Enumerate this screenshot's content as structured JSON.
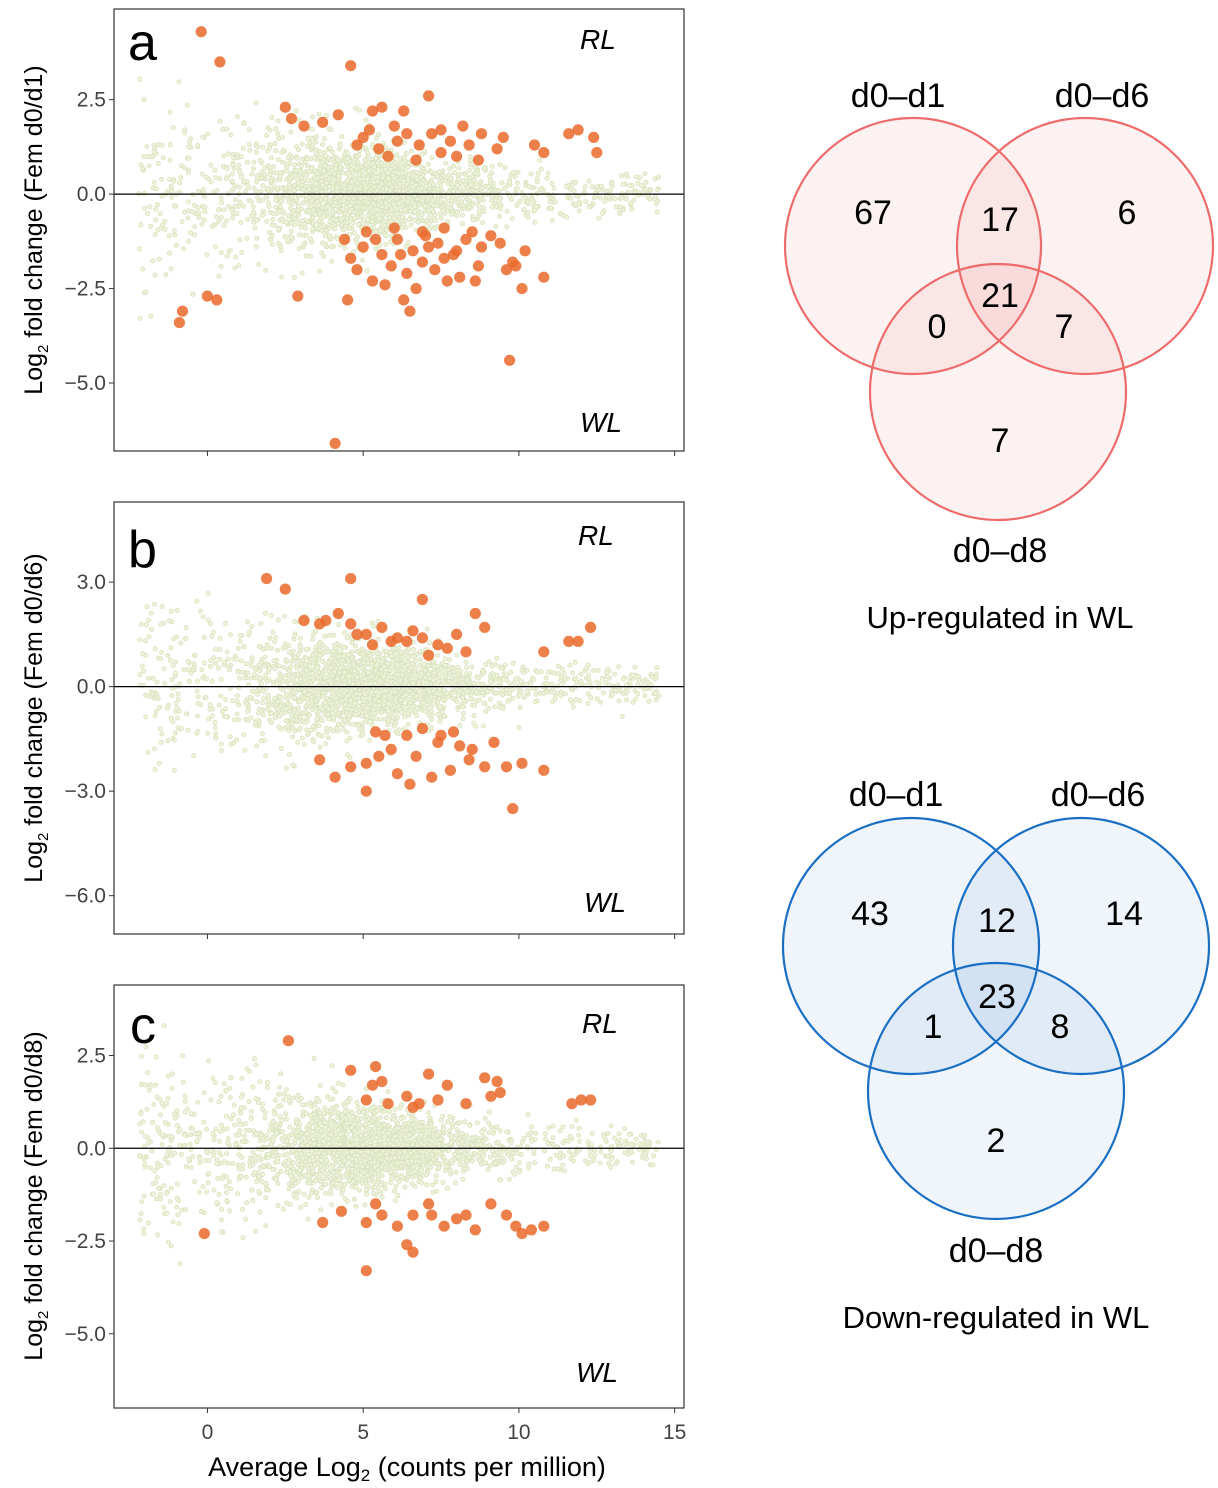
{
  "colors": {
    "background_points": "#d9e3bd",
    "highlight_points": "#ea6a2a",
    "up_venn": "#ee6b6b",
    "down_venn": "#1a6fc4",
    "zero_line": "#000000"
  },
  "x_axis": {
    "label_pre": "Average Log",
    "label_sub": "2",
    "label_post": " (counts per million)",
    "ticks": [
      0,
      5,
      10,
      15
    ],
    "range": [
      -3,
      15.3
    ]
  },
  "corner_labels": {
    "top": "RL",
    "bottom": "WL"
  },
  "chart_data": [
    {
      "type": "scatter",
      "panel": "a",
      "ylabel_pre": "Log",
      "ylabel_sub": "2",
      "ylabel_post": " fold change (Fem d0/d1)",
      "ylim": [
        -6.8,
        4.9
      ],
      "y_ticks": [
        2.5,
        0.0,
        -2.5,
        -5.0
      ],
      "y_tick_labels": [
        "2.5",
        "0.0",
        "−2.5",
        "−5.0"
      ],
      "reference_line": 0,
      "highlighted": [
        [
          -0.2,
          4.3
        ],
        [
          0.4,
          3.5
        ],
        [
          4.6,
          3.4
        ],
        [
          -0.8,
          -3.1
        ],
        [
          -0.9,
          -3.4
        ],
        [
          0,
          -2.7
        ],
        [
          0.3,
          -2.8
        ],
        [
          2.9,
          -2.7
        ],
        [
          4.5,
          -2.8
        ],
        [
          2.5,
          2.3
        ],
        [
          2.7,
          2.0
        ],
        [
          3.7,
          1.9
        ],
        [
          4.2,
          2.1
        ],
        [
          5.3,
          2.2
        ],
        [
          5.6,
          2.3
        ],
        [
          6.3,
          2.2
        ],
        [
          7.1,
          2.6
        ],
        [
          7.5,
          1.7
        ],
        [
          8.2,
          1.8
        ],
        [
          8.8,
          1.6
        ],
        [
          9.5,
          1.5
        ],
        [
          10.5,
          1.3
        ],
        [
          10.8,
          1.1
        ],
        [
          11.6,
          1.6
        ],
        [
          11.9,
          1.7
        ],
        [
          12.4,
          1.5
        ],
        [
          12.5,
          1.1
        ],
        [
          5.0,
          1.5
        ],
        [
          5.5,
          1.2
        ],
        [
          6.1,
          1.4
        ],
        [
          6.8,
          1.3
        ],
        [
          7.5,
          1.1
        ],
        [
          8.0,
          1.0
        ],
        [
          8.7,
          0.9
        ],
        [
          5.8,
          1.0
        ],
        [
          6.7,
          0.9
        ],
        [
          4.8,
          1.3
        ],
        [
          7.2,
          1.6
        ],
        [
          3.1,
          1.8
        ],
        [
          5.2,
          1.7
        ],
        [
          6.0,
          1.8
        ],
        [
          6.4,
          1.6
        ],
        [
          7.8,
          1.4
        ],
        [
          8.4,
          1.3
        ],
        [
          9.3,
          1.2
        ],
        [
          4.4,
          -1.2
        ],
        [
          5.0,
          -1.4
        ],
        [
          5.6,
          -1.6
        ],
        [
          6.1,
          -1.2
        ],
        [
          6.6,
          -1.5
        ],
        [
          7.0,
          -1.1
        ],
        [
          7.4,
          -1.3
        ],
        [
          7.9,
          -1.6
        ],
        [
          8.3,
          -1.2
        ],
        [
          8.8,
          -1.4
        ],
        [
          9.4,
          -1.3
        ],
        [
          9.8,
          -1.8
        ],
        [
          10.2,
          -1.5
        ],
        [
          4.8,
          -2.0
        ],
        [
          5.3,
          -2.3
        ],
        [
          5.9,
          -1.9
        ],
        [
          6.4,
          -2.1
        ],
        [
          6.9,
          -1.8
        ],
        [
          7.3,
          -2.0
        ],
        [
          8.1,
          -2.2
        ],
        [
          8.7,
          -1.9
        ],
        [
          9.6,
          -2.0
        ],
        [
          9.9,
          -1.9
        ],
        [
          4.6,
          -1.7
        ],
        [
          5.7,
          -2.4
        ],
        [
          6.3,
          -2.8
        ],
        [
          6.7,
          -2.5
        ],
        [
          7.7,
          -2.3
        ],
        [
          8.6,
          -2.3
        ],
        [
          10.1,
          -2.5
        ],
        [
          10.8,
          -2.2
        ],
        [
          5.1,
          -1.0
        ],
        [
          6.0,
          -0.9
        ],
        [
          6.9,
          -1.0
        ],
        [
          7.6,
          -0.9
        ],
        [
          8.5,
          -1.0
        ],
        [
          9.1,
          -1.1
        ],
        [
          6.5,
          -3.1
        ],
        [
          4.1,
          -6.6
        ],
        [
          9.7,
          -4.4
        ],
        [
          5.4,
          -1.2
        ],
        [
          6.2,
          -1.6
        ],
        [
          7.1,
          -1.4
        ],
        [
          7.6,
          -1.7
        ],
        [
          8.0,
          -1.5
        ]
      ]
    },
    {
      "type": "scatter",
      "panel": "b",
      "ylabel_pre": "Log",
      "ylabel_sub": "2",
      "ylabel_post": " fold change (Fem d0/d6)",
      "ylim": [
        -7.1,
        5.3
      ],
      "y_ticks": [
        3.0,
        0.0,
        -3.0,
        -6.0
      ],
      "y_tick_labels": [
        "3.0",
        "0.0",
        "−3.0",
        "−6.0"
      ],
      "reference_line": 0,
      "highlighted": [
        [
          1.9,
          3.1
        ],
        [
          2.5,
          2.8
        ],
        [
          4.6,
          3.1
        ],
        [
          3.1,
          1.9
        ],
        [
          3.6,
          1.8
        ],
        [
          4.2,
          2.1
        ],
        [
          4.6,
          1.8
        ],
        [
          5.1,
          1.5
        ],
        [
          5.6,
          1.7
        ],
        [
          6.1,
          1.4
        ],
        [
          6.6,
          1.6
        ],
        [
          6.9,
          2.5
        ],
        [
          7.4,
          1.2
        ],
        [
          8.0,
          1.5
        ],
        [
          8.6,
          2.1
        ],
        [
          8.9,
          1.7
        ],
        [
          10.8,
          1.0
        ],
        [
          11.6,
          1.3
        ],
        [
          11.9,
          1.3
        ],
        [
          12.3,
          1.7
        ],
        [
          5.3,
          1.2
        ],
        [
          6.4,
          1.3
        ],
        [
          7.7,
          1.1
        ],
        [
          8.3,
          1.0
        ],
        [
          5.9,
          1.3
        ],
        [
          7.1,
          0.9
        ],
        [
          4.8,
          1.5
        ],
        [
          6.9,
          1.4
        ],
        [
          3.8,
          1.9
        ],
        [
          5.4,
          -1.3
        ],
        [
          5.9,
          -1.8
        ],
        [
          6.4,
          -1.4
        ],
        [
          6.9,
          -1.2
        ],
        [
          7.4,
          -1.6
        ],
        [
          7.9,
          -1.3
        ],
        [
          8.5,
          -1.8
        ],
        [
          9.2,
          -1.6
        ],
        [
          9.6,
          -2.3
        ],
        [
          10.1,
          -2.2
        ],
        [
          10.8,
          -2.4
        ],
        [
          4.1,
          -2.6
        ],
        [
          4.6,
          -2.3
        ],
        [
          5.1,
          -2.2
        ],
        [
          5.5,
          -2.0
        ],
        [
          6.1,
          -2.5
        ],
        [
          6.5,
          -2.8
        ],
        [
          7.2,
          -2.6
        ],
        [
          7.8,
          -2.4
        ],
        [
          8.4,
          -2.1
        ],
        [
          8.9,
          -2.3
        ],
        [
          5.1,
          -3.0
        ],
        [
          3.6,
          -2.1
        ],
        [
          6.7,
          -2.0
        ],
        [
          9.8,
          -3.5
        ],
        [
          7.5,
          -1.4
        ],
        [
          8.1,
          -1.7
        ],
        [
          5.7,
          -1.4
        ]
      ]
    },
    {
      "type": "scatter",
      "panel": "c",
      "ylabel_pre": "Log",
      "ylabel_sub": "2",
      "ylabel_post": " fold change (Fem d0/d8)",
      "ylim": [
        -7.0,
        4.4
      ],
      "y_ticks": [
        2.5,
        0.0,
        -2.5,
        -5.0
      ],
      "y_tick_labels": [
        "2.5",
        "0.0",
        "−2.5",
        "−5.0"
      ],
      "reference_line": 0,
      "highlighted": [
        [
          2.6,
          2.9
        ],
        [
          4.6,
          2.1
        ],
        [
          5.4,
          2.2
        ],
        [
          5.3,
          1.7
        ],
        [
          5.6,
          1.8
        ],
        [
          6.4,
          1.4
        ],
        [
          7.1,
          2.0
        ],
        [
          7.7,
          1.7
        ],
        [
          8.9,
          1.9
        ],
        [
          9.3,
          1.8
        ],
        [
          9.4,
          1.5
        ],
        [
          11.7,
          1.2
        ],
        [
          12.0,
          1.3
        ],
        [
          12.3,
          1.3
        ],
        [
          5.1,
          1.3
        ],
        [
          5.8,
          1.2
        ],
        [
          6.6,
          1.1
        ],
        [
          7.4,
          1.3
        ],
        [
          8.3,
          1.2
        ],
        [
          9.1,
          1.4
        ],
        [
          6.8,
          1.2
        ],
        [
          -0.1,
          -2.3
        ],
        [
          3.7,
          -2.0
        ],
        [
          4.3,
          -1.7
        ],
        [
          5.1,
          -2.0
        ],
        [
          5.6,
          -1.8
        ],
        [
          6.1,
          -2.1
        ],
        [
          6.6,
          -1.8
        ],
        [
          7.1,
          -1.5
        ],
        [
          7.6,
          -2.1
        ],
        [
          8.0,
          -1.9
        ],
        [
          8.6,
          -2.2
        ],
        [
          9.1,
          -1.5
        ],
        [
          9.6,
          -1.8
        ],
        [
          9.9,
          -2.1
        ],
        [
          10.1,
          -2.3
        ],
        [
          10.4,
          -2.2
        ],
        [
          10.8,
          -2.1
        ],
        [
          6.4,
          -2.6
        ],
        [
          6.6,
          -2.8
        ],
        [
          5.1,
          -3.3
        ],
        [
          7.2,
          -1.8
        ],
        [
          8.3,
          -1.8
        ],
        [
          5.4,
          -1.5
        ]
      ]
    }
  ],
  "venn": [
    {
      "name": "up",
      "labels": [
        "d0–d1",
        "d0–d6",
        "d0–d8"
      ],
      "counts": {
        "only_d1": "67",
        "only_d6": "6",
        "only_d8": "7",
        "d1_d6": "17",
        "d1_d8": "0",
        "d6_d8": "7",
        "all": "21"
      },
      "caption": "Up-regulated in WL"
    },
    {
      "name": "down",
      "labels": [
        "d0–d1",
        "d0–d6",
        "d0–d8"
      ],
      "counts": {
        "only_d1": "43",
        "only_d6": "14",
        "only_d8": "2",
        "d1_d6": "12",
        "d1_d8": "1",
        "d6_d8": "8",
        "all": "23"
      },
      "caption": "Down-regulated in WL"
    }
  ]
}
